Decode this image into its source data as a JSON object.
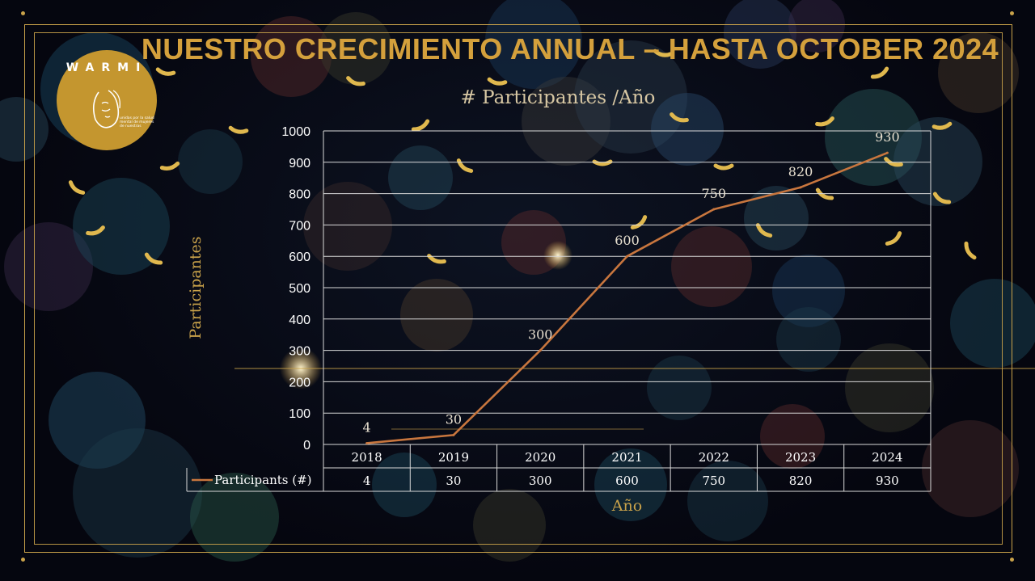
{
  "header": {
    "title": "NUESTRO CRECIMIENTO ANNUAL – HASTA OCTOBER 2024",
    "logo_word": "WARMI",
    "logo_tagline": "unidas por la salud mental de mujeres de nuestras"
  },
  "colors": {
    "gold": "#c9a24a",
    "title_gold": "#d4a03c",
    "line": "#c8763e",
    "background": "#05060f"
  },
  "chart_data": {
    "type": "line",
    "title": "# Participantes /Año",
    "xlabel": "Año",
    "ylabel": "Participantes",
    "categories": [
      "2018",
      "2019",
      "2020",
      "2021",
      "2022",
      "2023",
      "2024"
    ],
    "series": [
      {
        "name": "Participants (#)",
        "values": [
          4,
          30,
          300,
          600,
          750,
          820,
          930
        ],
        "color": "#c8763e"
      }
    ],
    "ylim": [
      0,
      1000
    ],
    "yticks": [
      0,
      100,
      200,
      300,
      400,
      500,
      600,
      700,
      800,
      900,
      1000
    ],
    "grid": true,
    "data_table": true,
    "data_labels": true
  }
}
